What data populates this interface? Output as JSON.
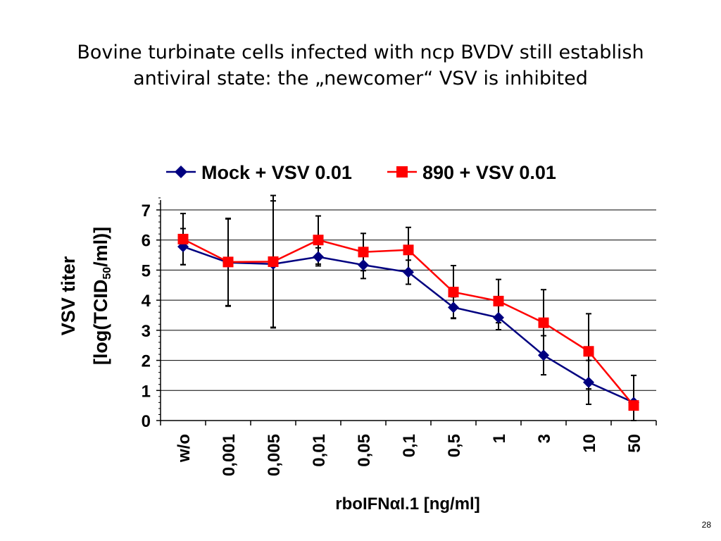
{
  "slide": {
    "title_line1": "Bovine turbinate cells infected with ncp BVDV still establish",
    "title_line2": "antiviral state: the „newcomer“ VSV is inhibited",
    "page_number": "28"
  },
  "colors": {
    "mock": "#000080",
    "bvdv": "#ff0000",
    "gridline": "#000000",
    "text": "#000000"
  },
  "chart_data": {
    "type": "line",
    "xlabel": "rboIFNαI.1 [ng/ml]",
    "ylabel_line1": "VSV titer",
    "ylabel_line2_prefix": "[log(TCID",
    "ylabel_line2_sub": "50",
    "ylabel_line2_suffix": "/ml)]",
    "categories": [
      "w/o",
      "0,001",
      "0,005",
      "0,01",
      "0,05",
      "0,1",
      "0,5",
      "1",
      "3",
      "10",
      "50"
    ],
    "ylim": [
      0,
      7
    ],
    "yticks": [
      "0",
      "1",
      "2",
      "3",
      "4",
      "5",
      "6",
      "7"
    ],
    "grid": true,
    "legend_position": "top",
    "series": [
      {
        "name": "Mock + VSV 0.01",
        "marker": "diamond",
        "values": [
          5.78,
          5.25,
          5.2,
          5.44,
          5.17,
          4.93,
          3.76,
          3.42,
          2.17,
          1.27,
          0.6
        ],
        "error": [
          0.6,
          1.45,
          2.1,
          0.3,
          0.45,
          0.4,
          0.35,
          0.4,
          0.65,
          0.73,
          0.9
        ]
      },
      {
        "name": "890 + VSV 0.01",
        "marker": "square",
        "values": [
          6.03,
          5.27,
          5.28,
          6.0,
          5.6,
          5.67,
          4.27,
          3.97,
          3.25,
          2.3,
          0.5
        ],
        "error": [
          0.85,
          1.45,
          2.2,
          0.8,
          0.62,
          0.75,
          0.88,
          0.72,
          1.1,
          1.25,
          1.0
        ]
      }
    ]
  }
}
